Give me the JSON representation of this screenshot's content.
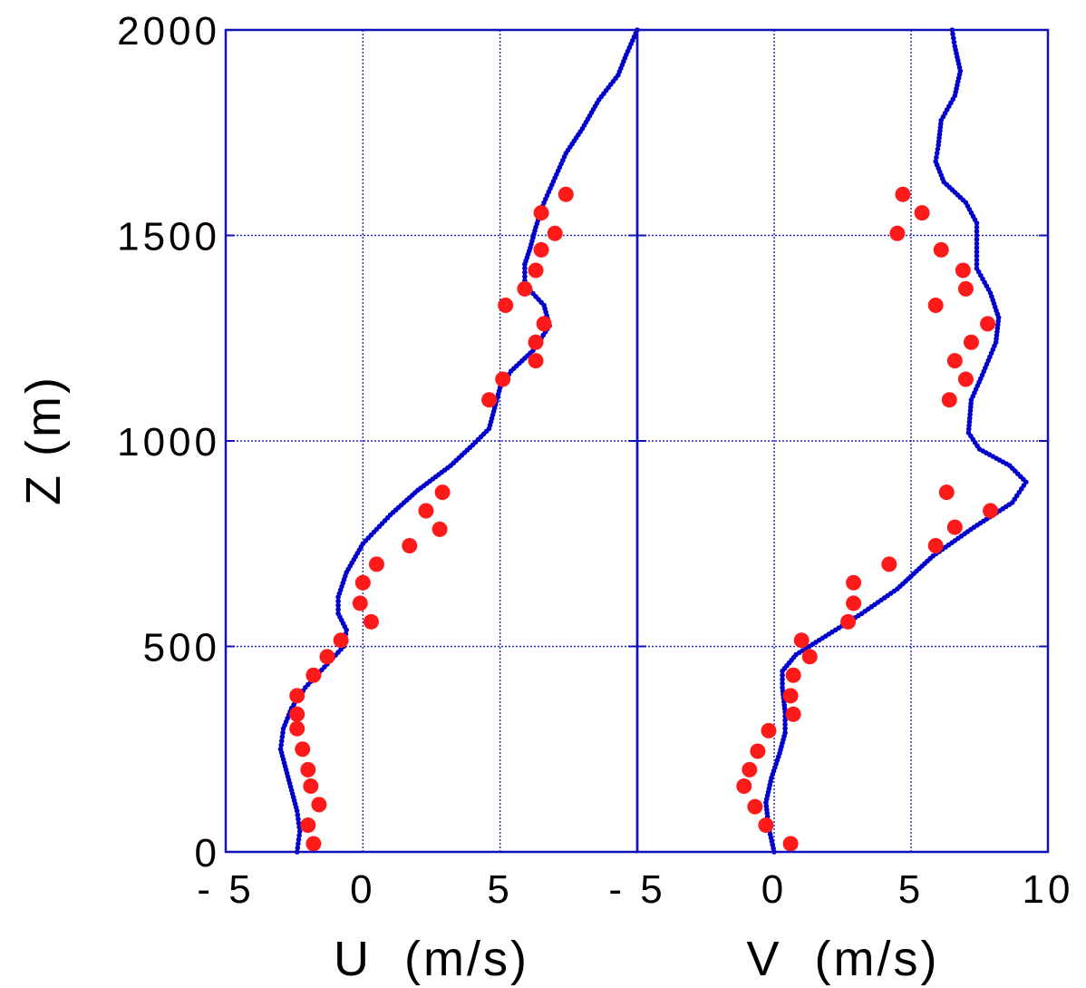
{
  "chart_data": [
    {
      "type": "scatter",
      "panel": "left",
      "xlabel": "U  (m/s)",
      "ylabel": "Z (m)",
      "xlim": [
        -5,
        10
      ],
      "ylim": [
        0,
        2000
      ],
      "x_ticks": [
        -5,
        0,
        5
      ],
      "x_tick_labels": [
        "- 5",
        "0",
        "5"
      ],
      "y_ticks": [
        0,
        500,
        1000,
        1500,
        2000
      ],
      "y_tick_labels": [
        "0",
        "500",
        "1000",
        "1500",
        "2000"
      ],
      "grid": true,
      "series": [
        {
          "kind": "dense-dotted-line",
          "color": "#0000cc",
          "points": [
            [
              -2.4,
              0
            ],
            [
              -2.3,
              50
            ],
            [
              -2.4,
              100
            ],
            [
              -2.6,
              150
            ],
            [
              -2.8,
              200
            ],
            [
              -3.0,
              250
            ],
            [
              -2.9,
              300
            ],
            [
              -2.6,
              350
            ],
            [
              -2.1,
              400
            ],
            [
              -1.4,
              450
            ],
            [
              -0.7,
              500
            ],
            [
              -0.6,
              540
            ],
            [
              -0.9,
              580
            ],
            [
              -0.9,
              620
            ],
            [
              -0.6,
              680
            ],
            [
              0.0,
              750
            ],
            [
              1.0,
              820
            ],
            [
              2.0,
              880
            ],
            [
              3.2,
              940
            ],
            [
              4.0,
              990
            ],
            [
              4.6,
              1030
            ],
            [
              4.8,
              1080
            ],
            [
              5.0,
              1130
            ],
            [
              5.4,
              1170
            ],
            [
              6.2,
              1220
            ],
            [
              6.8,
              1280
            ],
            [
              6.6,
              1330
            ],
            [
              5.9,
              1380
            ],
            [
              5.9,
              1430
            ],
            [
              6.1,
              1470
            ],
            [
              6.3,
              1520
            ],
            [
              6.6,
              1580
            ],
            [
              7.0,
              1640
            ],
            [
              7.4,
              1700
            ],
            [
              8.0,
              1760
            ],
            [
              8.6,
              1830
            ],
            [
              9.3,
              1890
            ],
            [
              9.6,
              1940
            ],
            [
              10.0,
              2000
            ]
          ]
        },
        {
          "kind": "observed-points",
          "color": "#ff1a1a",
          "points": [
            [
              -1.8,
              20
            ],
            [
              -2.0,
              65
            ],
            [
              -1.6,
              115
            ],
            [
              -1.9,
              160
            ],
            [
              -2.0,
              200
            ],
            [
              -2.2,
              250
            ],
            [
              -2.4,
              300
            ],
            [
              -2.4,
              335
            ],
            [
              -2.4,
              380
            ],
            [
              -1.8,
              430
            ],
            [
              -1.3,
              475
            ],
            [
              -0.8,
              515
            ],
            [
              0.3,
              560
            ],
            [
              -0.1,
              605
            ],
            [
              0.0,
              655
            ],
            [
              0.5,
              700
            ],
            [
              1.7,
              745
            ],
            [
              2.8,
              785
            ],
            [
              2.3,
              830
            ],
            [
              2.9,
              875
            ],
            [
              4.6,
              1100
            ],
            [
              5.1,
              1150
            ],
            [
              6.3,
              1195
            ],
            [
              6.3,
              1240
            ],
            [
              6.6,
              1285
            ],
            [
              5.2,
              1330
            ],
            [
              5.9,
              1370
            ],
            [
              6.3,
              1415
            ],
            [
              6.5,
              1465
            ],
            [
              7.0,
              1505
            ],
            [
              6.5,
              1555
            ],
            [
              7.4,
              1600
            ]
          ]
        }
      ]
    },
    {
      "type": "scatter",
      "panel": "right",
      "xlabel": "V  (m/s)",
      "ylabel": "",
      "xlim": [
        -5,
        10
      ],
      "ylim": [
        0,
        2000
      ],
      "x_ticks": [
        -5,
        0,
        5,
        10
      ],
      "x_tick_labels": [
        "- 5",
        "0",
        "5",
        "10"
      ],
      "y_ticks": [
        0,
        500,
        1000,
        1500,
        2000
      ],
      "grid": true,
      "series": [
        {
          "kind": "dense-dotted-line",
          "color": "#0000cc",
          "points": [
            [
              0.0,
              0
            ],
            [
              -0.2,
              60
            ],
            [
              -0.3,
              120
            ],
            [
              -0.1,
              180
            ],
            [
              0.2,
              240
            ],
            [
              0.4,
              290
            ],
            [
              0.4,
              340
            ],
            [
              0.3,
              400
            ],
            [
              0.3,
              440
            ],
            [
              0.8,
              480
            ],
            [
              2.0,
              530
            ],
            [
              3.2,
              580
            ],
            [
              4.5,
              640
            ],
            [
              5.8,
              720
            ],
            [
              7.3,
              790
            ],
            [
              8.7,
              850
            ],
            [
              9.2,
              900
            ],
            [
              8.6,
              940
            ],
            [
              7.5,
              980
            ],
            [
              7.1,
              1020
            ],
            [
              7.2,
              1100
            ],
            [
              7.6,
              1160
            ],
            [
              8.1,
              1240
            ],
            [
              8.2,
              1300
            ],
            [
              7.9,
              1360
            ],
            [
              7.4,
              1420
            ],
            [
              7.4,
              1480
            ],
            [
              7.4,
              1530
            ],
            [
              7.0,
              1580
            ],
            [
              6.2,
              1630
            ],
            [
              5.9,
              1680
            ],
            [
              6.0,
              1720
            ],
            [
              6.1,
              1780
            ],
            [
              6.6,
              1840
            ],
            [
              6.8,
              1900
            ],
            [
              6.6,
              1960
            ],
            [
              6.5,
              2000
            ]
          ]
        },
        {
          "kind": "observed-points",
          "color": "#ff1a1a",
          "points": [
            [
              0.6,
              20
            ],
            [
              -0.3,
              65
            ],
            [
              -0.7,
              110
            ],
            [
              -1.1,
              160
            ],
            [
              -0.9,
              200
            ],
            [
              -0.6,
              245
            ],
            [
              -0.2,
              295
            ],
            [
              0.7,
              335
            ],
            [
              0.6,
              380
            ],
            [
              0.7,
              430
            ],
            [
              1.3,
              475
            ],
            [
              1.0,
              515
            ],
            [
              2.7,
              560
            ],
            [
              2.9,
              605
            ],
            [
              2.9,
              655
            ],
            [
              4.2,
              700
            ],
            [
              5.9,
              745
            ],
            [
              6.6,
              790
            ],
            [
              7.9,
              830
            ],
            [
              6.3,
              875
            ],
            [
              6.4,
              1100
            ],
            [
              7.0,
              1150
            ],
            [
              6.6,
              1195
            ],
            [
              7.2,
              1240
            ],
            [
              7.8,
              1285
            ],
            [
              5.9,
              1330
            ],
            [
              7.0,
              1370
            ],
            [
              6.9,
              1415
            ],
            [
              6.1,
              1465
            ],
            [
              4.5,
              1505
            ],
            [
              5.4,
              1555
            ],
            [
              4.7,
              1600
            ]
          ]
        }
      ]
    }
  ]
}
